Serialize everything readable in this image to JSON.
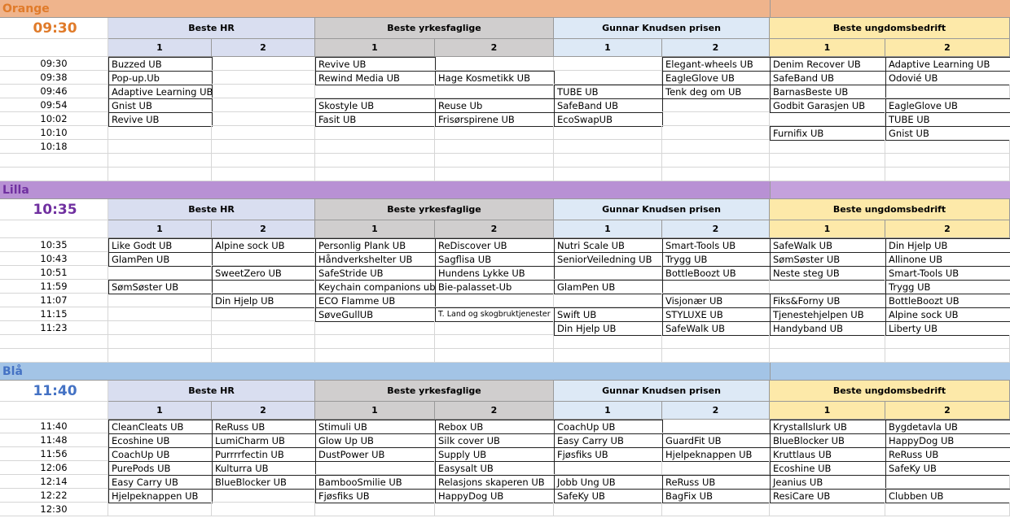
{
  "sections": [
    {
      "name": "Orange",
      "time": "09:30",
      "groups": [
        {
          "title": "Beste HR",
          "columns": [
            "1",
            "2"
          ]
        },
        {
          "title": "Beste yrkesfaglige",
          "columns": [
            "1",
            "2"
          ]
        },
        {
          "title": "Gunnar Knudsen prisen",
          "columns": [
            "1",
            "2"
          ]
        },
        {
          "title": "Beste ungdomsbedrift",
          "columns": [
            "1",
            "2"
          ]
        }
      ],
      "rows": [
        {
          "time": "09:30",
          "cells": [
            "Buzzed UB",
            null,
            "Revive UB",
            null,
            null,
            "Elegant-wheels UB",
            "Denim Recover UB",
            "Adaptive Learning UB"
          ]
        },
        {
          "time": "09:38",
          "cells": [
            "Pop-up.Ub",
            null,
            "Rewind Media UB",
            "Hage Kosmetikk UB",
            null,
            "EagleGlove UB",
            "SafeBand UB",
            "Odovié UB"
          ]
        },
        {
          "time": "09:46",
          "cells": [
            "Adaptive Learning UB",
            null,
            null,
            null,
            "TUBE UB",
            "Tenk deg om UB",
            "BarnasBeste UB",
            null
          ]
        },
        {
          "time": "09:54",
          "cells": [
            "Gnist UB",
            null,
            "Skostyle UB",
            "Reuse Ub",
            "SafeBand UB",
            null,
            "Godbit Garasjen UB",
            "EagleGlove UB"
          ]
        },
        {
          "time": "10:02",
          "cells": [
            "Revive UB",
            null,
            "Fasit UB",
            "Frisørspirene UB",
            "EcoSwapUB",
            null,
            null,
            "TUBE UB"
          ]
        },
        {
          "time": "10:10",
          "cells": [
            null,
            null,
            null,
            null,
            null,
            null,
            "Furnifix UB",
            "Gnist UB"
          ]
        },
        {
          "time": "10:18",
          "cells": [
            null,
            null,
            null,
            null,
            null,
            null,
            null,
            null
          ]
        }
      ]
    },
    {
      "name": "Lilla",
      "time": "10:35",
      "groups": [
        {
          "title": "Beste HR",
          "columns": [
            "1",
            "2"
          ]
        },
        {
          "title": "Beste yrkesfaglige",
          "columns": [
            "1",
            "2"
          ]
        },
        {
          "title": "Gunnar Knudsen prisen",
          "columns": [
            "1",
            "2"
          ]
        },
        {
          "title": "Beste ungdomsbedrift",
          "columns": [
            "1",
            "2"
          ]
        }
      ],
      "rows": [
        {
          "time": "10:35",
          "cells": [
            "Like Godt UB",
            "Alpine sock UB",
            "Personlig Plank UB",
            "ReDiscover UB",
            "Nutri Scale UB",
            "Smart-Tools UB",
            "SafeWalk UB",
            "Din Hjelp UB"
          ]
        },
        {
          "time": "10:43",
          "cells": [
            "GlamPen UB",
            null,
            "Håndverkshelter UB",
            "Sagflisa UB",
            "SeniorVeiledning UB",
            "Trygg UB",
            "SømSøster UB",
            "Allinone UB"
          ]
        },
        {
          "time": "10:51",
          "cells": [
            null,
            "SweetZero UB",
            "SafeStride UB",
            "Hundens Lykke UB",
            null,
            "BottleBoozt UB",
            "Neste steg UB",
            "Smart-Tools UB"
          ]
        },
        {
          "time": "11:59",
          "cells": [
            "SømSøster UB",
            null,
            "Keychain companions ub",
            "Bie-palasset-Ub",
            "GlamPen UB",
            null,
            null,
            "Trygg UB"
          ]
        },
        {
          "time": "11:07",
          "cells": [
            null,
            "Din Hjelp UB",
            "ECO Flamme UB",
            null,
            null,
            "Visjonær UB",
            "Fiks&Forny UB",
            "BottleBoozt UB"
          ]
        },
        {
          "time": "11:15",
          "cells": [
            null,
            null,
            "SøveGullUB",
            "T. Land og skogbruktjenester",
            "Swift UB",
            "STYLUXE UB",
            "Tjenestehjelpen UB",
            "Alpine sock UB"
          ]
        },
        {
          "time": "11:23",
          "cells": [
            null,
            null,
            null,
            null,
            "Din Hjelp UB",
            "SafeWalk UB",
            "Handyband UB",
            "Liberty UB"
          ]
        }
      ]
    },
    {
      "name": "Blå",
      "time": "11:40",
      "groups": [
        {
          "title": "Beste HR",
          "columns": [
            "1",
            "2"
          ]
        },
        {
          "title": "Beste yrkesfaglige",
          "columns": [
            "1",
            "2"
          ]
        },
        {
          "title": "Gunnar Knudsen prisen",
          "columns": [
            "1",
            "2"
          ]
        },
        {
          "title": "Beste ungdomsbedrift",
          "columns": [
            "1",
            "2"
          ]
        }
      ],
      "rows": [
        {
          "time": "11:40",
          "cells": [
            "CleanCleats UB",
            "ReRuss UB",
            "Stimuli UB",
            "Rebox UB",
            "CoachUp UB",
            null,
            "Krystallslurk UB",
            "Bygdetavla UB"
          ]
        },
        {
          "time": "11:48",
          "cells": [
            "Ecoshine UB",
            "LumiCharm UB",
            "Glow Up UB",
            "Silk cover UB",
            "Easy Carry UB",
            "GuardFit UB",
            "BlueBlocker UB",
            "HappyDog UB"
          ]
        },
        {
          "time": "11:56",
          "cells": [
            "CoachUp UB",
            "Purrrrfectin UB",
            "DustPower UB",
            "Supply UB",
            "Fjøsfiks UB",
            "Hjelpeknappen UB",
            "Kruttlaus UB",
            "ReRuss UB"
          ]
        },
        {
          "time": "12:06",
          "cells": [
            "PurePods UB",
            "Kulturra UB",
            null,
            "Easysalt UB",
            null,
            null,
            "Ecoshine UB",
            "SafeKy UB"
          ]
        },
        {
          "time": "12:14",
          "cells": [
            "Easy Carry UB",
            "BlueBlocker UB",
            "BambooSmilie UB",
            "Relasjons skaperen UB",
            "Jobb Ung UB",
            "ReRuss UB",
            "Jeanius UB",
            null
          ]
        },
        {
          "time": "12:22",
          "cells": [
            "Hjelpeknappen UB",
            null,
            "Fjøsfiks UB",
            "HappyDog UB",
            "SafeKy UB",
            "BagFix UB",
            "ResiCare UB",
            "Clubben UB"
          ]
        },
        {
          "time": "12:30",
          "cells": [
            null,
            null,
            null,
            null,
            null,
            null,
            null,
            null
          ]
        }
      ]
    }
  ]
}
